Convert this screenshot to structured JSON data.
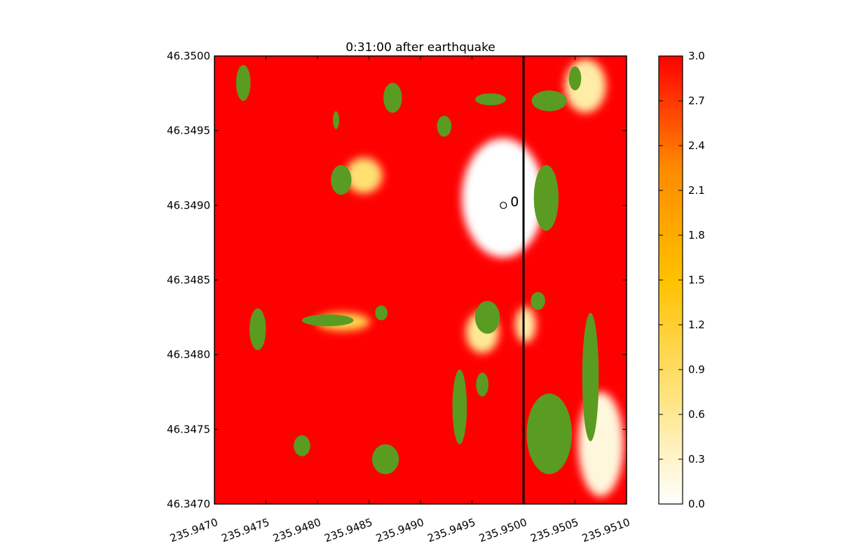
{
  "chart_data": {
    "type": "heatmap",
    "title": "0:31:00 after earthquake",
    "xlabel": "",
    "ylabel": "",
    "xlim": [
      235.947,
      235.951
    ],
    "ylim": [
      46.347,
      46.35
    ],
    "x_tick_labels": [
      "235.9470",
      "235.9475",
      "235.9480",
      "235.9485",
      "235.9490",
      "235.9495",
      "235.9500",
      "235.9505",
      "235.9510"
    ],
    "y_tick_labels": [
      "46.3470",
      "46.3475",
      "46.3480",
      "46.3485",
      "46.3490",
      "46.3495",
      "46.3500"
    ],
    "colorbar": {
      "min": 0.0,
      "max": 3.0,
      "tick_labels": [
        "0.0",
        "0.3",
        "0.6",
        "0.9",
        "1.2",
        "1.5",
        "1.8",
        "2.1",
        "2.4",
        "2.7",
        "3.0"
      ],
      "colors": [
        "#ffffff",
        "#ffe27a",
        "#ffc100",
        "#ff8a00",
        "#ff0000"
      ]
    },
    "land_color": "#5a9b22",
    "vertical_line_x": 235.95,
    "gauge": {
      "label": "0",
      "x": 235.9499,
      "y": 46.349
    },
    "land_patches": [
      {
        "shape": "ellipse",
        "cx": 235.94728,
        "cy": 46.34982,
        "rx": 7e-05,
        "ry": 0.00012
      },
      {
        "shape": "ellipse",
        "cx": 235.94873,
        "cy": 46.34972,
        "rx": 9e-05,
        "ry": 0.0001
      },
      {
        "shape": "ellipse",
        "cx": 235.94823,
        "cy": 46.34917,
        "rx": 0.0001,
        "ry": 0.0001
      },
      {
        "shape": "ellipse",
        "cx": 235.94818,
        "cy": 46.34957,
        "rx": 3e-05,
        "ry": 6e-05
      },
      {
        "shape": "ellipse",
        "cx": 235.94923,
        "cy": 46.34953,
        "rx": 7e-05,
        "ry": 7e-05
      },
      {
        "shape": "ellipse",
        "cx": 235.94968,
        "cy": 46.34971,
        "rx": 0.00015,
        "ry": 4e-05
      },
      {
        "shape": "ellipse",
        "cx": 235.95025,
        "cy": 46.3497,
        "rx": 0.00017,
        "ry": 7e-05
      },
      {
        "shape": "ellipse",
        "cx": 235.95022,
        "cy": 46.34905,
        "rx": 0.00012,
        "ry": 0.00022
      },
      {
        "shape": "ellipse",
        "cx": 235.94742,
        "cy": 46.34817,
        "rx": 8e-05,
        "ry": 0.00014
      },
      {
        "shape": "ellipse",
        "cx": 235.9481,
        "cy": 46.34823,
        "rx": 0.00025,
        "ry": 4e-05
      },
      {
        "shape": "ellipse",
        "cx": 235.94862,
        "cy": 46.34828,
        "rx": 6e-05,
        "ry": 5e-05
      },
      {
        "shape": "ellipse",
        "cx": 235.94965,
        "cy": 46.34825,
        "rx": 0.00012,
        "ry": 0.00011
      },
      {
        "shape": "ellipse",
        "cx": 235.95014,
        "cy": 46.34836,
        "rx": 7e-05,
        "ry": 6e-05
      },
      {
        "shape": "ellipse",
        "cx": 235.95065,
        "cy": 46.34785,
        "rx": 8e-05,
        "ry": 0.00043
      },
      {
        "shape": "ellipse",
        "cx": 235.94938,
        "cy": 46.34765,
        "rx": 7e-05,
        "ry": 0.00025
      },
      {
        "shape": "ellipse",
        "cx": 235.9496,
        "cy": 46.3478,
        "rx": 6e-05,
        "ry": 8e-05
      },
      {
        "shape": "ellipse",
        "cx": 235.95025,
        "cy": 46.34747,
        "rx": 0.00022,
        "ry": 0.00027
      },
      {
        "shape": "ellipse",
        "cx": 235.94785,
        "cy": 46.34739,
        "rx": 8e-05,
        "ry": 7e-05
      },
      {
        "shape": "ellipse",
        "cx": 235.94866,
        "cy": 46.3473,
        "rx": 0.00013,
        "ry": 0.0001
      },
      {
        "shape": "ellipse",
        "cx": 235.9505,
        "cy": 46.34985,
        "rx": 6e-05,
        "ry": 8e-05
      }
    ],
    "dry_patches": [
      {
        "shape": "ellipse",
        "cx": 235.9498,
        "cy": 46.34905,
        "rx": 0.0004,
        "ry": 0.0004,
        "value": 0.0
      },
      {
        "shape": "ellipse",
        "cx": 235.9506,
        "cy": 46.3498,
        "rx": 0.0002,
        "ry": 0.00018,
        "value": 0.5
      },
      {
        "shape": "ellipse",
        "cx": 235.95075,
        "cy": 46.3474,
        "rx": 0.00022,
        "ry": 0.00035,
        "value": 0.2
      },
      {
        "shape": "ellipse",
        "cx": 235.95002,
        "cy": 46.3482,
        "rx": 0.0001,
        "ry": 0.00012,
        "value": 0.5
      },
      {
        "shape": "ellipse",
        "cx": 235.94845,
        "cy": 46.3492,
        "rx": 0.00018,
        "ry": 0.00012,
        "value": 0.8
      },
      {
        "shape": "ellipse",
        "cx": 235.94825,
        "cy": 46.34822,
        "rx": 0.00026,
        "ry": 6e-05,
        "value": 1.0
      },
      {
        "shape": "ellipse",
        "cx": 235.9496,
        "cy": 46.34815,
        "rx": 0.00016,
        "ry": 0.00014,
        "value": 0.6
      }
    ]
  }
}
